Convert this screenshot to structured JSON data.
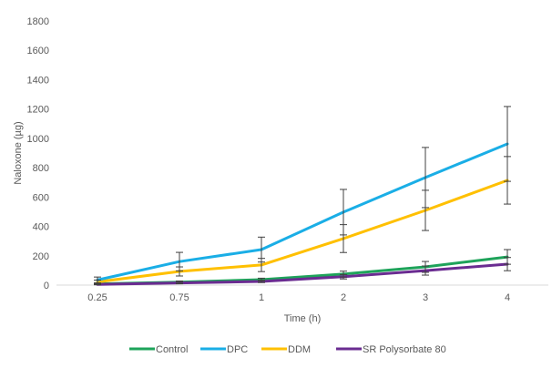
{
  "chart_data": {
    "type": "line",
    "title": "",
    "xlabel": "Time (h)",
    "ylabel": "Naloxone (µg)",
    "categories": [
      "0.25",
      "0.75",
      "1",
      "2",
      "3",
      "4"
    ],
    "ylim": [
      0,
      1800
    ],
    "yticks": [
      0,
      200,
      400,
      600,
      800,
      1000,
      1200,
      1400,
      1600,
      1800
    ],
    "grid": false,
    "legend_position": "bottom",
    "series": [
      {
        "name": "Control",
        "color": "#1EA35A",
        "values": [
          8,
          20,
          37,
          75,
          124,
          192
        ],
        "error": [
          5,
          8,
          10,
          20,
          37,
          50
        ]
      },
      {
        "name": "DPC",
        "color": "#1AAEE6",
        "values": [
          35,
          160,
          242,
          497,
          733,
          962
        ],
        "error": [
          20,
          63,
          85,
          155,
          205,
          255
        ]
      },
      {
        "name": "DDM",
        "color": "#FFC000",
        "values": [
          22,
          93,
          137,
          317,
          509,
          714
        ],
        "error": [
          12,
          31,
          45,
          95,
          137,
          162
        ]
      },
      {
        "name": "SR Polysorbate 80",
        "color": "#6A2C91",
        "values": [
          5,
          15,
          25,
          57,
          99,
          143
        ],
        "error": [
          3,
          6,
          8,
          15,
          31,
          45
        ]
      }
    ]
  }
}
